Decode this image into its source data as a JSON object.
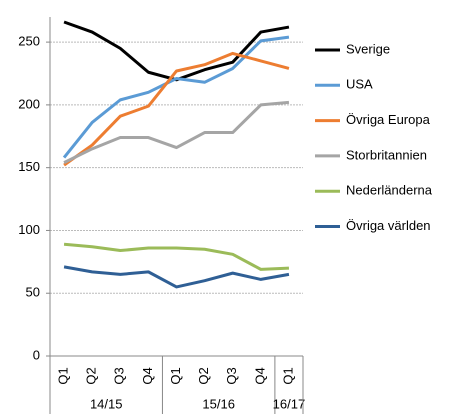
{
  "chart_data": {
    "type": "line",
    "categories": [
      "Q1",
      "Q2",
      "Q3",
      "Q4",
      "Q1",
      "Q2",
      "Q3",
      "Q4",
      "Q1"
    ],
    "x_groups": [
      "14/15",
      "14/15",
      "14/15",
      "14/15",
      "15/16",
      "15/16",
      "15/16",
      "15/16",
      "16/17"
    ],
    "series": [
      {
        "name": "Sverige",
        "color": "#000000",
        "values": [
          266,
          258,
          245,
          226,
          220,
          228,
          234,
          258,
          262
        ]
      },
      {
        "name": "USA",
        "color": "#5b9bd5",
        "values": [
          158,
          186,
          204,
          210,
          221,
          218,
          229,
          251,
          254
        ]
      },
      {
        "name": "Övriga Europa",
        "color": "#ed7d31",
        "values": [
          152,
          168,
          191,
          199,
          227,
          232,
          241,
          235,
          229
        ]
      },
      {
        "name": "Storbritannien",
        "color": "#a5a5a5",
        "values": [
          154,
          165,
          174,
          174,
          166,
          178,
          178,
          200,
          202
        ]
      },
      {
        "name": "Nederländerna",
        "color": "#9bbb59",
        "values": [
          89,
          87,
          84,
          86,
          86,
          85,
          81,
          69,
          70
        ]
      },
      {
        "name": "Övriga världen",
        "color": "#2f5f95",
        "values": [
          71,
          67,
          65,
          67,
          55,
          60,
          66,
          61,
          65
        ]
      }
    ],
    "ylim": [
      0,
      270
    ],
    "yticks": [
      0,
      50,
      100,
      150,
      200,
      250
    ],
    "grid": true,
    "legend": "right"
  }
}
